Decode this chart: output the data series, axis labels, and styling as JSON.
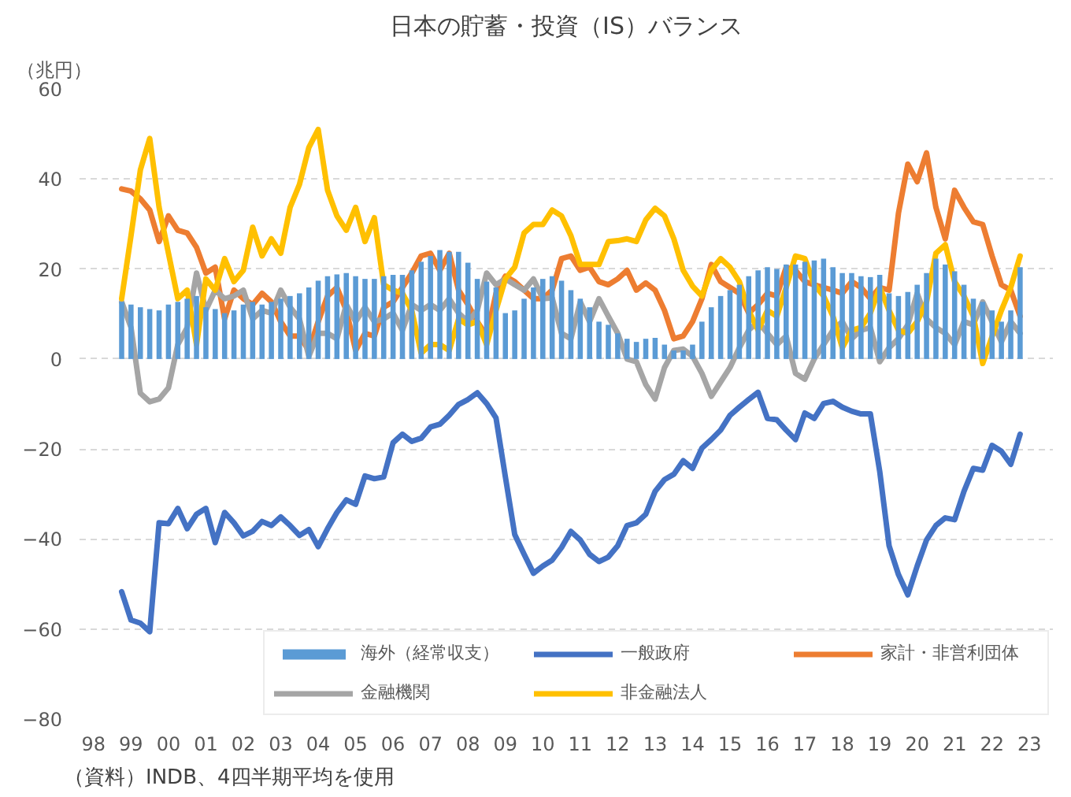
{
  "chart_data": {
    "type": "bar",
    "title": "日本の貯蓄・投資（IS）バランス",
    "ylabel": "（兆円）",
    "annotations": [
      "（資料）INDB、4四半期平均を使用"
    ],
    "categories": [
      null,
      "98",
      null,
      null,
      null,
      "99",
      null,
      null,
      null,
      "00",
      null,
      null,
      null,
      "01",
      null,
      null,
      null,
      "02",
      null,
      null,
      null,
      "03",
      null,
      null,
      null,
      "04",
      null,
      null,
      null,
      "05",
      null,
      null,
      null,
      "06",
      null,
      null,
      null,
      "07",
      null,
      null,
      null,
      "08",
      null,
      null,
      null,
      "09",
      null,
      null,
      null,
      "10",
      null,
      null,
      null,
      "11",
      null,
      null,
      null,
      "12",
      null,
      null,
      null,
      "13",
      null,
      null,
      null,
      "14",
      null,
      null,
      null,
      "15",
      null,
      null,
      null,
      "16",
      null,
      null,
      null,
      "17",
      null,
      null,
      null,
      "18",
      null,
      null,
      null,
      "19",
      null,
      null,
      null,
      "20",
      null,
      null,
      null,
      "21",
      null,
      null,
      null,
      "22",
      null,
      null,
      null,
      "23",
      null,
      null
    ],
    "series": [
      {
        "name": "海外（経常収支）",
        "color": "#5b9bd5",
        "values": [
          null,
          null,
          null,
          null,
          12.7,
          12.1,
          11.5,
          11.1,
          10.8,
          12.1,
          12.7,
          13.4,
          14,
          11.5,
          11.1,
          10.2,
          10.8,
          12.1,
          12.7,
          12.1,
          12.7,
          13.4,
          14,
          14.6,
          15.9,
          17.4,
          18.4,
          18.8,
          19.1,
          18.4,
          17.8,
          17.8,
          18.4,
          18.7,
          18.7,
          19.7,
          21.6,
          22.9,
          24.2,
          23.8,
          23.8,
          21.4,
          17.8,
          17.2,
          15.9,
          10.2,
          10.8,
          13.4,
          15.9,
          17.8,
          18.4,
          17.4,
          15.3,
          13.4,
          11.5,
          8.3,
          7.6,
          5.7,
          4.5,
          3.8,
          4.5,
          4.7,
          3.2,
          1.9,
          1.9,
          3.2,
          8.3,
          11.5,
          14,
          15.3,
          16.5,
          18.4,
          19.7,
          20.4,
          20,
          21,
          21,
          21.6,
          21.9,
          22.3,
          20.4,
          19.1,
          19.1,
          18.4,
          18.2,
          18.7,
          14.6,
          14,
          14.9,
          16.5,
          19.1,
          22.3,
          21,
          19.5,
          16.5,
          13.4,
          12.7,
          10.8,
          8.3,
          10.8,
          20.4,
          null,
          null,
          null
        ]
      },
      {
        "name": "一般政府",
        "type": "line",
        "color": "#4472c4",
        "values": [
          null,
          null,
          null,
          null,
          -51.7,
          -58,
          -58.7,
          -60.6,
          -36.4,
          -36.6,
          -33.2,
          -37.7,
          -34.5,
          -33.2,
          -40.8,
          -34.1,
          -36.4,
          -39.3,
          -38.3,
          -36.1,
          -37,
          -35.1,
          -37,
          -39.2,
          -37.9,
          -41.7,
          -37.7,
          -34.1,
          -31.3,
          -32.3,
          -26,
          -26.6,
          -26.2,
          -18.6,
          -16.7,
          -18.3,
          -17.6,
          -15.1,
          -14.5,
          -12.5,
          -10.1,
          -9,
          -7.5,
          -9.9,
          -13.1,
          -26.2,
          -39,
          -43.4,
          -47.6,
          -46,
          -44.7,
          -41.9,
          -38.3,
          -40.2,
          -43.4,
          -45,
          -44,
          -41.5,
          -37,
          -36.4,
          -34.5,
          -29.4,
          -26.8,
          -25.6,
          -22.6,
          -24.3,
          -19.8,
          -17.9,
          -15.8,
          -12.5,
          -10.7,
          -9,
          -7.4,
          -13.2,
          -13.5,
          -15.8,
          -17.9,
          -12,
          -13.2,
          -9.9,
          -9.4,
          -10.7,
          -11.6,
          -12.2,
          -12.2,
          -25,
          -41.5,
          -47.9,
          -52.4,
          -46,
          -40.2,
          -37,
          -35.3,
          -35.7,
          -29.4,
          -24.3,
          -24.7,
          -19.2,
          -20.5,
          -23.4,
          -16.7,
          null,
          null,
          null
        ]
      },
      {
        "name": "家計・非営利団体",
        "type": "line",
        "color": "#ed7d31",
        "values": [
          null,
          null,
          null,
          null,
          37.8,
          37.3,
          35.6,
          33.1,
          26.1,
          31.8,
          28.6,
          28,
          24.8,
          19.1,
          20.4,
          8.9,
          15.3,
          13.4,
          12.1,
          14.6,
          12.7,
          8.3,
          5.1,
          5.1,
          1.9,
          8.3,
          14,
          15.9,
          10.8,
          1.9,
          5.7,
          5.1,
          11.5,
          12.7,
          15.9,
          19.1,
          22.9,
          23.5,
          19.7,
          23.5,
          15.3,
          12.1,
          8.3,
          5.1,
          14.6,
          18.4,
          17.2,
          15.3,
          13.4,
          13.4,
          15.3,
          22.3,
          22.9,
          19.7,
          20.4,
          17.2,
          16.5,
          17.8,
          19.7,
          15.3,
          16.9,
          15.3,
          10.8,
          4.5,
          5.1,
          8.3,
          13.4,
          21,
          17.2,
          15.9,
          14.6,
          10.2,
          12.1,
          14.6,
          14,
          20.4,
          19.7,
          17.2,
          16.5,
          15.9,
          15.3,
          14.6,
          17.2,
          15.9,
          13.4,
          15.9,
          15.3,
          32.4,
          43.3,
          39.4,
          45.8,
          33.7,
          26.7,
          37.5,
          33.7,
          30.5,
          29.9,
          22.9,
          16.5,
          15.3,
          9.5,
          null,
          null,
          null
        ]
      },
      {
        "name": "金融機関",
        "type": "line",
        "color": "#a5a5a5",
        "values": [
          null,
          null,
          null,
          null,
          12.7,
          7,
          -7.6,
          -9.5,
          -8.9,
          -6.4,
          3.2,
          7,
          19.1,
          10.8,
          15.3,
          13.4,
          14,
          15.3,
          8.9,
          10.8,
          10.2,
          15.3,
          11.5,
          8.9,
          0.6,
          5.7,
          5.7,
          4.5,
          12.1,
          8.3,
          11.5,
          8.3,
          8.9,
          10.2,
          6.4,
          12.1,
          10.8,
          12.1,
          10.8,
          13.4,
          10.2,
          8.3,
          10.8,
          19.1,
          16.5,
          17.8,
          16.5,
          15.3,
          17.8,
          13.4,
          13.6,
          5.7,
          4.5,
          12.7,
          8.3,
          13.4,
          9.5,
          5.7,
          0,
          -0.6,
          -5.7,
          -8.9,
          -1.9,
          1.9,
          2.2,
          0.6,
          -3.2,
          -8.3,
          -5.1,
          -1.9,
          2.5,
          6.4,
          8.3,
          5.7,
          3.2,
          5.1,
          -3.2,
          -4.5,
          0,
          3.2,
          6.4,
          8.3,
          4.5,
          6.4,
          7,
          -0.6,
          2.5,
          4.5,
          7.6,
          14.6,
          8.9,
          7,
          5.7,
          3.2,
          8.3,
          7.6,
          12.7,
          8.3,
          3.8,
          8.3,
          5.7,
          null,
          null,
          null
        ]
      },
      {
        "name": "非金融法人",
        "type": "line",
        "color": "#ffc000",
        "values": [
          null,
          null,
          null,
          null,
          13.4,
          27.4,
          42,
          49,
          33.7,
          23.5,
          13.4,
          15.3,
          3.2,
          17.8,
          15.3,
          22.3,
          17.2,
          19.7,
          29.3,
          22.9,
          26.7,
          23.5,
          33.7,
          38.8,
          47,
          51,
          37.5,
          31.8,
          28.6,
          33.7,
          26.1,
          31.4,
          16.5,
          15.3,
          14.6,
          10.8,
          1.3,
          3.2,
          3.2,
          1.9,
          8.9,
          7.6,
          8.3,
          3.2,
          10.8,
          17.8,
          20.4,
          28,
          29.9,
          29.9,
          33.1,
          31.8,
          27.4,
          21,
          21,
          21,
          26.1,
          26.3,
          26.7,
          26.1,
          30.9,
          33.5,
          31.8,
          26.7,
          19.7,
          16.2,
          14,
          19.7,
          22.3,
          20.4,
          17.2,
          10.8,
          6.4,
          10.8,
          9.5,
          15.9,
          22.9,
          22.3,
          16.5,
          14,
          9.5,
          2.5,
          6.4,
          7,
          10.2,
          15.9,
          10.8,
          6.4,
          5.7,
          8.3,
          12.7,
          23.5,
          25.4,
          17.2,
          14,
          9.5,
          -1,
          5,
          10.8,
          15.9,
          22.9,
          null,
          null,
          null
        ]
      }
    ],
    "ylim": [
      -80,
      60
    ],
    "yticks": [
      -80,
      -60,
      -40,
      -20,
      0,
      20,
      40,
      60
    ],
    "grid": "y",
    "legend": "bottom"
  }
}
